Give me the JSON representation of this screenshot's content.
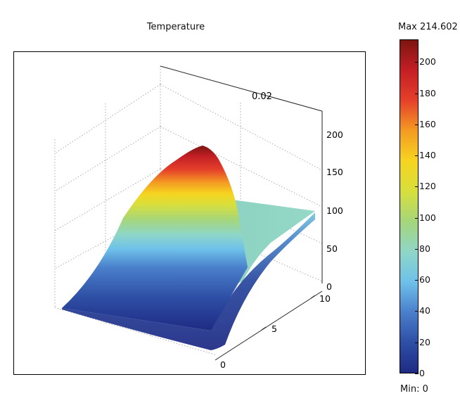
{
  "chart_data": {
    "type": "surface",
    "title": "Temperature",
    "colorbar": {
      "max_label": "Max 214.602",
      "min_label": "Min: 0",
      "min": 0,
      "max": 214.602,
      "ticks": [
        "0",
        "20",
        "40",
        "60",
        "80",
        "100",
        "120",
        "140",
        "160",
        "180",
        "200"
      ],
      "colors": [
        "#1f2a84",
        "#2e4fa5",
        "#4a7fcb",
        "#6ec1ea",
        "#8fd6c8",
        "#a5d67a",
        "#d8df3c",
        "#f6d420",
        "#f49b22",
        "#e5402a",
        "#c41f25",
        "#7d1510"
      ]
    },
    "axes": {
      "z_ticks": [
        "0",
        "50",
        "100",
        "150",
        "200"
      ],
      "y_ticks": [
        "0",
        "5",
        "10"
      ],
      "x_tick": "0.02"
    },
    "surface": {
      "peak_value": 214.602,
      "plateau_value": 90,
      "min_value": 0
    }
  }
}
